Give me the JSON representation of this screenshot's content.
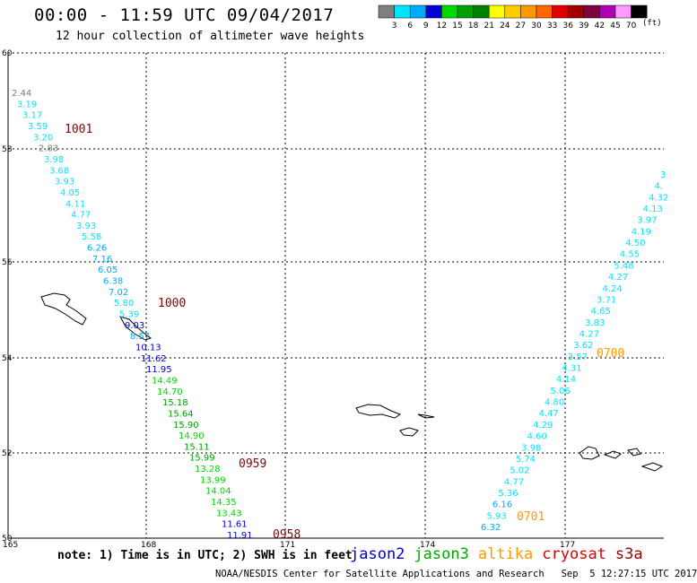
{
  "header": {
    "title": "00:00 - 11:59 UTC 09/04/2017",
    "subtitle": "12 hour collection of altimeter wave heights"
  },
  "colorbar": {
    "labels": [
      "3",
      "6",
      "9",
      "12",
      "15",
      "18",
      "21",
      "24",
      "27",
      "30",
      "33",
      "36",
      "39",
      "42",
      "45",
      "70"
    ],
    "colors": [
      "#7f7f7f",
      "#00e5ff",
      "#00aaff",
      "#0000d8",
      "#00d800",
      "#00a000",
      "#008000",
      "#ffff00",
      "#ffcc00",
      "#ff9900",
      "#ff6600",
      "#e00000",
      "#a00000",
      "#800040",
      "#b000b0",
      "#ff99ff",
      "#000000"
    ],
    "units": "(ft)"
  },
  "axes": {
    "lat_labels": [
      "60",
      "58",
      "56",
      "54",
      "52",
      "50"
    ],
    "lon_labels": [
      "165",
      "168",
      "171",
      "174",
      "177"
    ]
  },
  "tracks": {
    "west": [
      "2.44",
      "3.19",
      "3.17",
      "3.59",
      "3.20",
      "2.83",
      "3.98",
      "3.68",
      "3.93",
      "4.05",
      "4.11",
      "4.77",
      "3.93",
      "5.58",
      "6.26",
      "7.16",
      "6.05",
      "6.38",
      "7.02",
      "5.80",
      "5.39",
      "9.03",
      "8.57",
      "10.13",
      "11.62",
      "11.95",
      "14.49",
      "14.70",
      "15.18",
      "15.64",
      "15.90",
      "14.90",
      "15.11",
      "15.99",
      "13.28",
      "13.99",
      "14.04",
      "14.35",
      "13.43",
      "11.61",
      "11.91"
    ],
    "east": [
      "3",
      "4.",
      "4.32",
      "4.13",
      "3.97",
      "4.19",
      "4.50",
      "4.55",
      "5.48",
      "4.27",
      "4.24",
      "3.71",
      "4.65",
      "3.83",
      "4.27",
      "3.62",
      "3.57",
      "4.31",
      "4.14",
      "5.06",
      "4.80",
      "4.47",
      "4.29",
      "4.60",
      "3.98",
      "5.74",
      "5.02",
      "4.77",
      "5.36",
      "6.16",
      "5.93",
      "6.32"
    ]
  },
  "times": {
    "west": [
      "1001",
      "1000",
      "0959",
      "0958"
    ],
    "east": [
      "0700",
      "0701"
    ]
  },
  "note": "note: 1) Time is in UTC; 2) SWH is in feet",
  "satellites": [
    {
      "name": "jason2",
      "color": "#0000cc"
    },
    {
      "name": "jason3",
      "color": "#00aa00"
    },
    {
      "name": "altika",
      "color": "#ff9900"
    },
    {
      "name": "cryosat",
      "color": "#dd0000"
    },
    {
      "name": "s3a",
      "color": "#990000"
    }
  ],
  "credit": "NOAA/NESDIS Center for Satellite Applications and Research   Sep  5 12:27:15 UTC 2017"
}
